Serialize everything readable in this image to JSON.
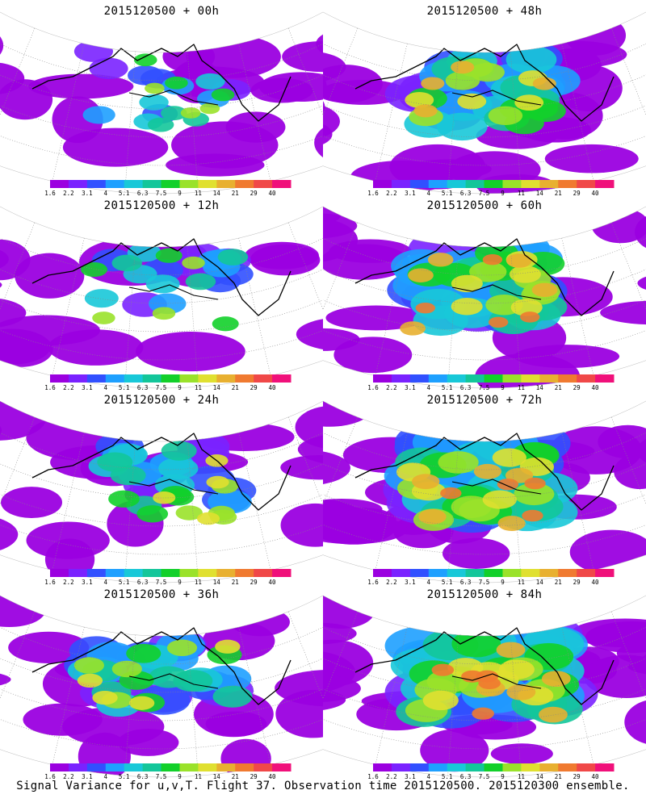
{
  "panels": [
    {
      "title": "2015120500 + 00h",
      "intensity": 0.15
    },
    {
      "title": "2015120500 + 48h",
      "intensity": 0.62
    },
    {
      "title": "2015120500 + 12h",
      "intensity": 0.25
    },
    {
      "title": "2015120500 + 60h",
      "intensity": 0.72
    },
    {
      "title": "2015120500 + 24h",
      "intensity": 0.38
    },
    {
      "title": "2015120500 + 72h",
      "intensity": 0.82
    },
    {
      "title": "2015120500 + 36h",
      "intensity": 0.48
    },
    {
      "title": "2015120500 + 84h",
      "intensity": 0.88
    }
  ],
  "colorbar": {
    "labels": [
      "1.6",
      "2.2",
      "3.1",
      "4",
      "5.1",
      "6.3",
      "7.5",
      "9",
      "11",
      "14",
      "21",
      "29",
      "40"
    ],
    "colors": [
      "#9b00e0",
      "#7a22ff",
      "#3150ff",
      "#1ea0ff",
      "#18c8d8",
      "#13c69a",
      "#12d02a",
      "#9ae22a",
      "#e0e030",
      "#e8b030",
      "#f07a30",
      "#f04848",
      "#f0107a"
    ]
  },
  "footer": "Signal Variance for u,v,T. Flight 37. Observation time 2015120500. 2015120300 ensemble."
}
